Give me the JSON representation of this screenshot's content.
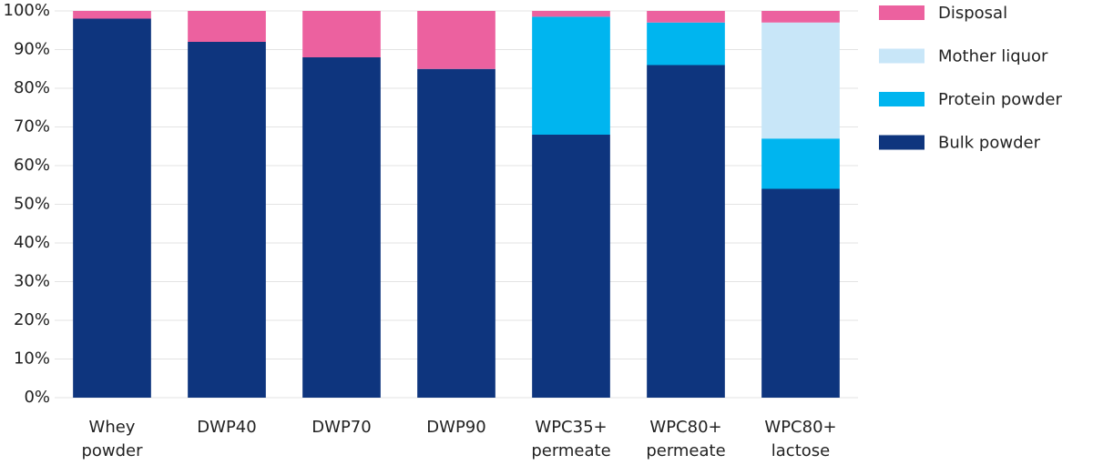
{
  "chart_data": {
    "type": "stacked_bar",
    "categories": [
      "Whey powder",
      "DWP40",
      "DWP70",
      "DWP90",
      "WPC35+ permeate",
      "WPC80+ permeate",
      "WPC80+ lactose"
    ],
    "series": [
      {
        "name": "Bulk powder",
        "color": "#0e357e",
        "values": [
          98,
          92,
          88,
          85,
          68,
          86,
          54
        ]
      },
      {
        "name": "Protein powder",
        "color": "#00b5ef",
        "values": [
          0,
          0,
          0,
          0,
          30.5,
          11,
          13
        ]
      },
      {
        "name": "Mother liquor",
        "color": "#c8e6f8",
        "values": [
          0,
          0,
          0,
          0,
          0,
          0,
          30
        ]
      },
      {
        "name": "Disposal",
        "color": "#ec619f",
        "values": [
          2,
          8,
          12,
          15,
          1.5,
          3,
          3
        ]
      }
    ],
    "ylim": [
      0,
      100
    ],
    "yticks": [
      {
        "value": 0,
        "label": "0%"
      },
      {
        "value": 10,
        "label": "10%"
      },
      {
        "value": 20,
        "label": "20%"
      },
      {
        "value": 30,
        "label": "30%"
      },
      {
        "value": 40,
        "label": "40%"
      },
      {
        "value": 50,
        "label": "50%"
      },
      {
        "value": 60,
        "label": "60%"
      },
      {
        "value": 70,
        "label": "70%"
      },
      {
        "value": 80,
        "label": "80%"
      },
      {
        "value": 90,
        "label": "90%"
      },
      {
        "value": 100,
        "label": "100%"
      }
    ],
    "grid": true
  }
}
